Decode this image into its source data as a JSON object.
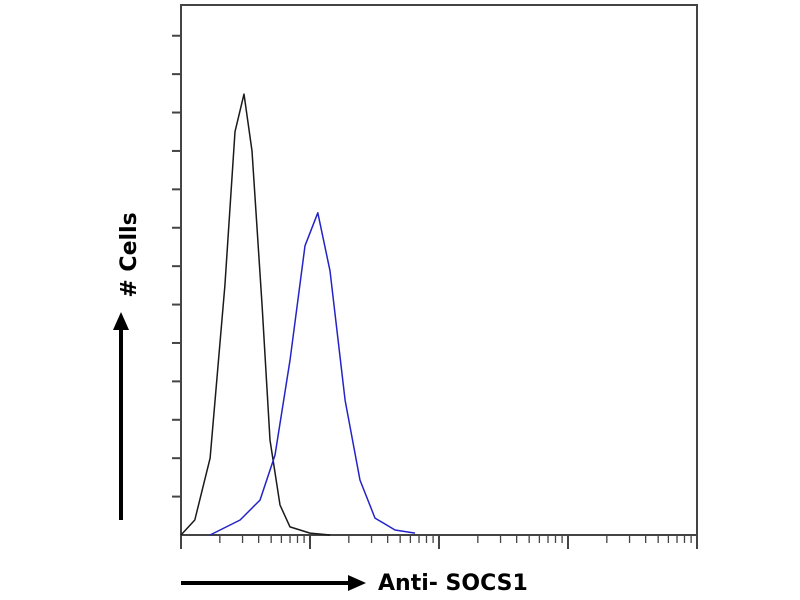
{
  "chart_data": {
    "type": "line",
    "x_label": "Anti- SOCS1",
    "y_label": "# Cells",
    "xscale": "log",
    "xlim": [
      1,
      10000
    ],
    "xticks": [
      1,
      2,
      3,
      4,
      5,
      6,
      7,
      8,
      9,
      10,
      20,
      30,
      40,
      50,
      60,
      70,
      80,
      90,
      100,
      200,
      300,
      400,
      500,
      600,
      700,
      800,
      900,
      1000,
      2000,
      3000,
      4000,
      5000,
      6000,
      7000,
      8000,
      9000,
      10000
    ],
    "ylim": [
      0,
      13.8
    ],
    "yticks": [
      1,
      2,
      3,
      4,
      5,
      6,
      7,
      8,
      9,
      10,
      11,
      12,
      13
    ],
    "series": [
      {
        "color": "#1a1a1a",
        "x": [
          1,
          1.28,
          1.68,
          2.19,
          2.62,
          3.08,
          3.55,
          4.25,
          4.9,
          5.85,
          7.0,
          10,
          14.3
        ],
        "values": [
          0,
          0.39,
          2.0,
          6.5,
          10.5,
          11.48,
          10.0,
          5.97,
          2.47,
          0.78,
          0.21,
          0.05,
          0
        ]
      },
      {
        "color": "#2323c8",
        "x": [
          1.68,
          2.87,
          4.1,
          5.35,
          7.0,
          9.15,
          11.5,
          14.3,
          18.7,
          24.4,
          31.9,
          45.6,
          65.2
        ],
        "values": [
          0,
          0.39,
          0.91,
          2.08,
          4.55,
          7.53,
          8.39,
          6.88,
          3.51,
          1.43,
          0.44,
          0.13,
          0.05
        ]
      }
    ]
  }
}
